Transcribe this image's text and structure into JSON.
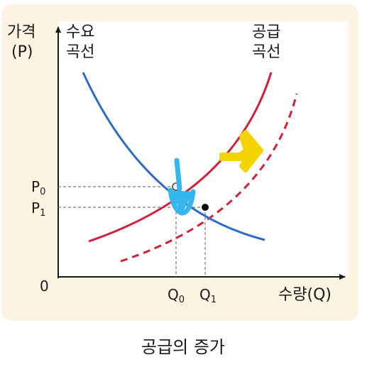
{
  "axes": {
    "y_title_line1": "가격",
    "y_title_line2": "(P)",
    "x_title": "수량(Q)",
    "origin": "0"
  },
  "curves": {
    "demand_line1": "수요",
    "demand_line2": "곡선",
    "supply_line1": "공급",
    "supply_line2": "곡선"
  },
  "prices": {
    "p0": "P",
    "p0_sub": "0",
    "p1": "P",
    "p1_sub": "1"
  },
  "quantities": {
    "q0": "Q",
    "q0_sub": "0",
    "q1": "Q",
    "q1_sub": "1"
  },
  "caption": "공급의 증가",
  "colors": {
    "panel": "#fdf3e3",
    "demand": "#2b6cc4",
    "supply": "#d0203a",
    "shift_arrow": "#f3d400",
    "price_arrow": "#35b6ee"
  }
}
